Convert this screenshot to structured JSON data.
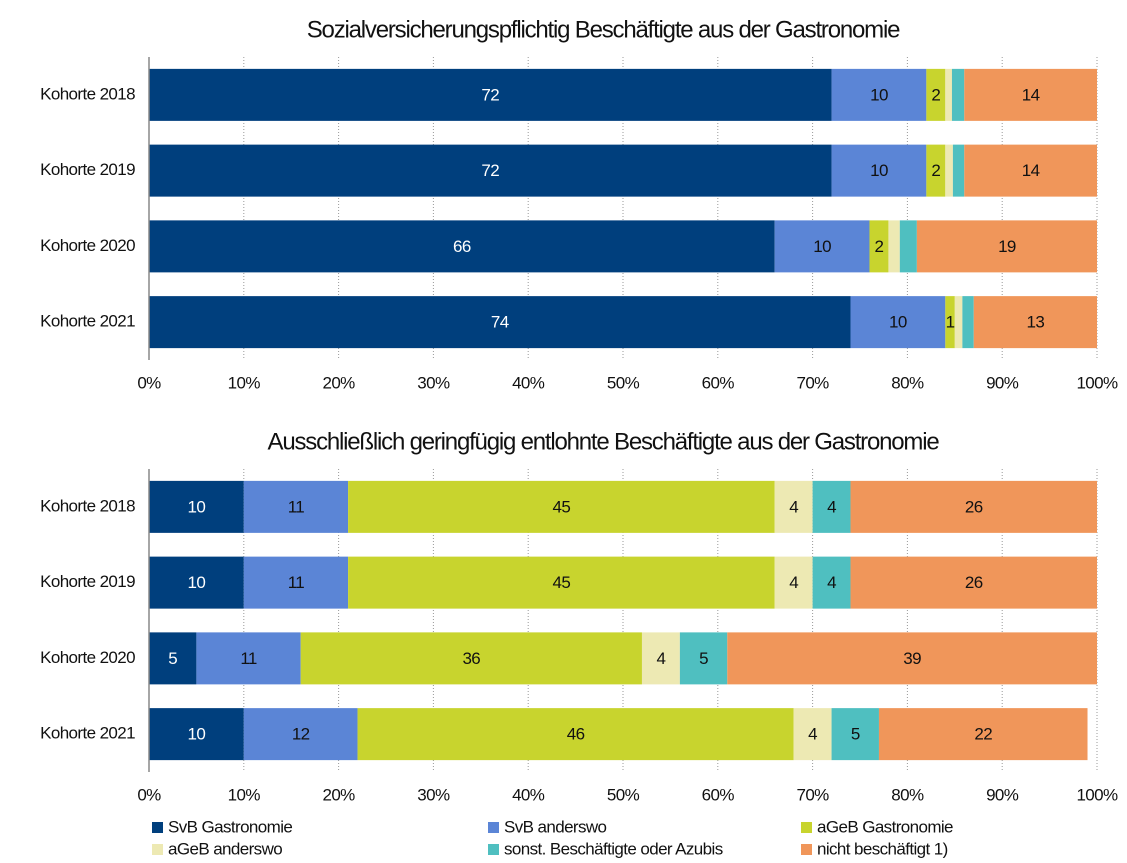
{
  "chart_data": [
    {
      "type": "bar",
      "orientation": "horizontal",
      "stacked": true,
      "title": "Sozialversicherungspflichtig Beschäftigte aus der Gastronomie",
      "categories": [
        "Kohorte 2018",
        "Kohorte 2019",
        "Kohorte 2020",
        "Kohorte 2021"
      ],
      "series": [
        {
          "color": "#003f7d",
          "values": [
            72,
            72,
            66,
            74
          ]
        },
        {
          "color": "#5b85d6",
          "values": [
            10,
            10,
            10,
            10
          ]
        },
        {
          "color": "#c8d42e",
          "values": [
            2,
            2,
            2,
            1
          ]
        },
        {
          "color": "#ede9b3",
          "values": [
            0.7,
            0.8,
            1.2,
            0.8
          ],
          "labels": false
        },
        {
          "color": "#4fbfc0",
          "values": [
            1.3,
            1.2,
            1.8,
            1.2
          ],
          "labels": false
        },
        {
          "color": "#f0965a",
          "values": [
            14,
            14,
            19,
            13
          ]
        }
      ],
      "xlim": [
        0,
        100
      ],
      "xticks": [
        {
          "value": 0,
          "label": "0%"
        },
        {
          "value": 10,
          "label": "10%"
        },
        {
          "value": 20,
          "label": "20%"
        },
        {
          "value": 30,
          "label": "30%"
        },
        {
          "value": 40,
          "label": "40%"
        },
        {
          "value": 50,
          "label": "50%"
        },
        {
          "value": 60,
          "label": "60%"
        },
        {
          "value": 70,
          "label": "70%"
        },
        {
          "value": 80,
          "label": "80%"
        },
        {
          "value": 90,
          "label": "90%"
        },
        {
          "value": 100,
          "label": "100%"
        }
      ],
      "grid": true
    },
    {
      "type": "bar",
      "orientation": "horizontal",
      "stacked": true,
      "title": "Ausschließlich geringfügig entlohnte Beschäftigte aus der Gastronomie",
      "categories": [
        "Kohorte 2018",
        "Kohorte 2019",
        "Kohorte 2020",
        "Kohorte 2021"
      ],
      "series": [
        {
          "name": "SvB Gastronomie",
          "color": "#003f7d",
          "values": [
            10,
            10,
            5,
            10
          ]
        },
        {
          "name": "SvB anderswo",
          "color": "#5b85d6",
          "values": [
            11,
            11,
            11,
            12
          ]
        },
        {
          "name": "aGeB Gastronomie",
          "color": "#c8d42e",
          "values": [
            45,
            45,
            36,
            46
          ]
        },
        {
          "name": "aGeB anderswo",
          "color": "#ede9b3",
          "values": [
            4,
            4,
            4,
            4
          ]
        },
        {
          "name": "sonst. Beschäftigte oder Azubis",
          "color": "#4fbfc0",
          "values": [
            4,
            4,
            5,
            5
          ]
        },
        {
          "name": "nicht beschäftigt 1)",
          "color": "#f0965a",
          "values": [
            26,
            26,
            39,
            22
          ]
        }
      ],
      "xlim": [
        0,
        100
      ],
      "xticks": [
        {
          "value": 0,
          "label": "0%"
        },
        {
          "value": 10,
          "label": "10%"
        },
        {
          "value": 20,
          "label": "20%"
        },
        {
          "value": 30,
          "label": "30%"
        },
        {
          "value": 40,
          "label": "40%"
        },
        {
          "value": 50,
          "label": "50%"
        },
        {
          "value": 60,
          "label": "60%"
        },
        {
          "value": 70,
          "label": "70%"
        },
        {
          "value": 80,
          "label": "80%"
        },
        {
          "value": 90,
          "label": "90%"
        },
        {
          "value": 100,
          "label": "100%"
        }
      ],
      "grid": true,
      "legend": "bottom"
    }
  ]
}
